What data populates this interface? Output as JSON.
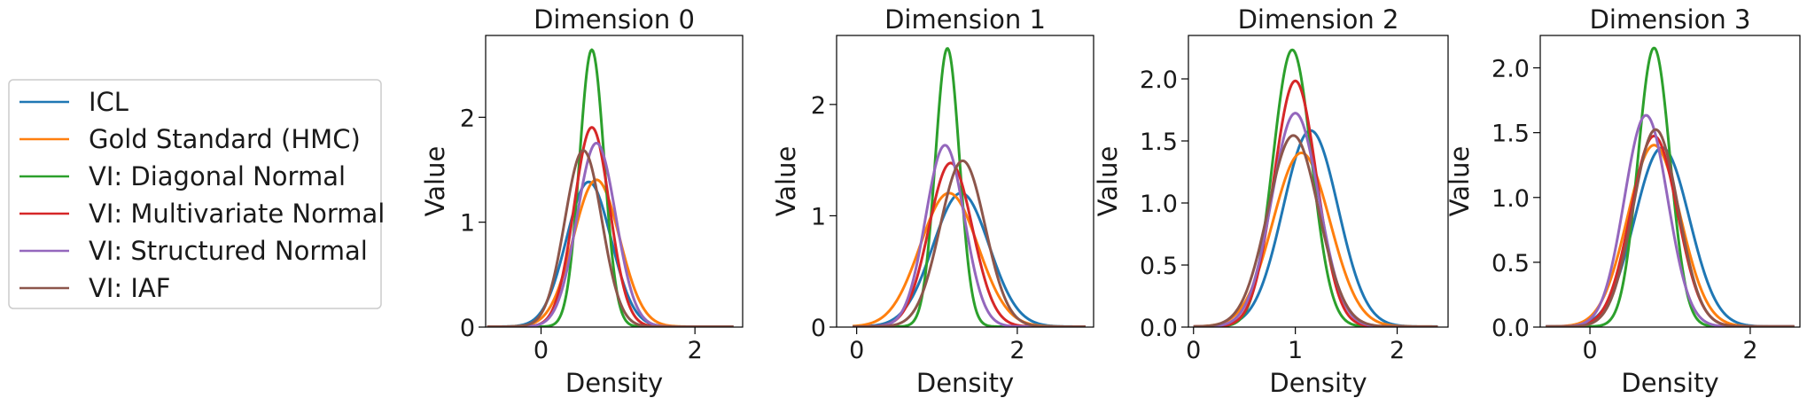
{
  "chart_data": {
    "type": "line",
    "legend": {
      "placement": "left",
      "entries": [
        {
          "label": "ICL",
          "color": "#1f77b4"
        },
        {
          "label": "Gold Standard (HMC)",
          "color": "#ff7f0e"
        },
        {
          "label": "VI: Diagonal Normal",
          "color": "#2ca02c"
        },
        {
          "label": "VI: Multivariate Normal",
          "color": "#d62728"
        },
        {
          "label": "VI: Structured Normal",
          "color": "#9467bd"
        },
        {
          "label": "VI: IAF",
          "color": "#8c564b"
        }
      ]
    },
    "panels": [
      {
        "title": "Dimension 0",
        "xlabel": "Density",
        "ylabel": "Value",
        "xlim": [
          -0.72,
          2.62
        ],
        "ylim": [
          0,
          2.78
        ],
        "xticks": [
          0,
          2
        ],
        "xtick_labels": [
          "0",
          "2"
        ],
        "yticks": [
          0,
          1,
          2
        ],
        "ytick_labels": [
          "0",
          "1",
          "2"
        ],
        "x_range": [
          -0.7,
          2.5
        ],
        "series": [
          {
            "name": "ICL",
            "mu": 0.62,
            "sigma": 0.29,
            "peak": 1.38
          },
          {
            "name": "Gold Standard (HMC)",
            "mu": 0.72,
            "sigma": 0.3,
            "peak": 1.4
          },
          {
            "name": "VI: Diagonal Normal",
            "mu": 0.66,
            "sigma": 0.16,
            "peak": 2.64
          },
          {
            "name": "VI: Multivariate Normal",
            "mu": 0.66,
            "sigma": 0.23,
            "peak": 1.9
          },
          {
            "name": "VI: Structured Normal",
            "mu": 0.72,
            "sigma": 0.25,
            "peak": 1.75
          },
          {
            "name": "VI: IAF",
            "mu": 0.55,
            "sigma": 0.24,
            "peak": 1.68
          }
        ]
      },
      {
        "title": "Dimension 1",
        "xlabel": "Density",
        "ylabel": "Value",
        "xlim": [
          -0.25,
          2.95
        ],
        "ylim": [
          0,
          2.62
        ],
        "xticks": [
          0,
          2
        ],
        "xtick_labels": [
          "0",
          "2"
        ],
        "yticks": [
          0,
          1,
          2
        ],
        "ytick_labels": [
          "0",
          "1",
          "2"
        ],
        "x_range": [
          -0.05,
          2.85
        ],
        "series": [
          {
            "name": "ICL",
            "mu": 1.3,
            "sigma": 0.35,
            "peak": 1.2
          },
          {
            "name": "Gold Standard (HMC)",
            "mu": 1.15,
            "sigma": 0.36,
            "peak": 1.2
          },
          {
            "name": "VI: Diagonal Normal",
            "mu": 1.13,
            "sigma": 0.15,
            "peak": 2.5
          },
          {
            "name": "VI: Multivariate Normal",
            "mu": 1.17,
            "sigma": 0.27,
            "peak": 1.47
          },
          {
            "name": "VI: Structured Normal",
            "mu": 1.1,
            "sigma": 0.24,
            "peak": 1.63
          },
          {
            "name": "VI: IAF",
            "mu": 1.32,
            "sigma": 0.28,
            "peak": 1.49
          }
        ]
      },
      {
        "title": "Dimension 2",
        "xlabel": "Density",
        "ylabel": "Value",
        "xlim": [
          -0.05,
          2.5
        ],
        "ylim": [
          0,
          2.35
        ],
        "xticks": [
          0,
          1,
          2
        ],
        "xtick_labels": [
          "0",
          "1",
          "2"
        ],
        "yticks": [
          0,
          0.5,
          1,
          1.5,
          2
        ],
        "ytick_labels": [
          "0.0",
          "0.5",
          "1.0",
          "1.5",
          "2.0"
        ],
        "x_range": [
          0.0,
          2.4
        ],
        "series": [
          {
            "name": "ICL",
            "mu": 1.15,
            "sigma": 0.27,
            "peak": 1.58
          },
          {
            "name": "Gold Standard (HMC)",
            "mu": 1.06,
            "sigma": 0.28,
            "peak": 1.4
          },
          {
            "name": "VI: Diagonal Normal",
            "mu": 0.97,
            "sigma": 0.19,
            "peak": 2.23
          },
          {
            "name": "VI: Multivariate Normal",
            "mu": 1.0,
            "sigma": 0.21,
            "peak": 1.98
          },
          {
            "name": "VI: Structured Normal",
            "mu": 1.0,
            "sigma": 0.23,
            "peak": 1.72
          },
          {
            "name": "VI: IAF",
            "mu": 0.98,
            "sigma": 0.25,
            "peak": 1.54
          }
        ]
      },
      {
        "title": "Dimension 3",
        "xlabel": "Density",
        "ylabel": "Value",
        "xlim": [
          -0.62,
          2.62
        ],
        "ylim": [
          0,
          2.25
        ],
        "xticks": [
          0,
          2
        ],
        "xtick_labels": [
          "0",
          "2"
        ],
        "yticks": [
          0,
          0.5,
          1,
          1.5,
          2
        ],
        "ytick_labels": [
          "0.0",
          "0.5",
          "1.0",
          "1.5",
          "2.0"
        ],
        "x_range": [
          -0.55,
          2.55
        ],
        "series": [
          {
            "name": "ICL",
            "mu": 0.9,
            "sigma": 0.34,
            "peak": 1.38
          },
          {
            "name": "Gold Standard (HMC)",
            "mu": 0.8,
            "sigma": 0.33,
            "peak": 1.4
          },
          {
            "name": "VI: Diagonal Normal",
            "mu": 0.8,
            "sigma": 0.2,
            "peak": 2.15
          },
          {
            "name": "VI: Multivariate Normal",
            "mu": 0.8,
            "sigma": 0.29,
            "peak": 1.47
          },
          {
            "name": "VI: Structured Normal",
            "mu": 0.7,
            "sigma": 0.27,
            "peak": 1.63
          },
          {
            "name": "VI: IAF",
            "mu": 0.82,
            "sigma": 0.28,
            "peak": 1.52
          }
        ]
      }
    ]
  }
}
